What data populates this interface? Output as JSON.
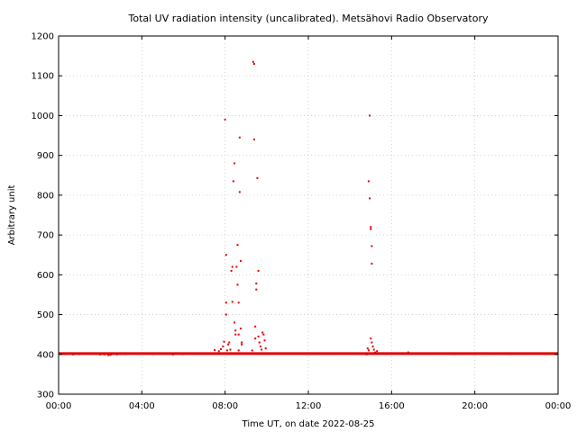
{
  "chart_data": {
    "type": "scatter",
    "title": "Total UV radiation intensity (uncalibrated). Metsähovi Radio Observatory",
    "xlabel": "Time UT, on date 2022-08-25",
    "ylabel": "Arbitrary unit",
    "xlim": [
      0,
      24
    ],
    "ylim": [
      300,
      1200
    ],
    "x_ticks": [
      0,
      4,
      8,
      12,
      16,
      20,
      24
    ],
    "x_tick_labels": [
      "00:00",
      "04:00",
      "08:00",
      "12:00",
      "16:00",
      "20:00",
      "00:00"
    ],
    "y_ticks": [
      300,
      400,
      500,
      600,
      700,
      800,
      900,
      1000,
      1100,
      1200
    ],
    "y_tick_labels": [
      "300",
      "400",
      "500",
      "600",
      "700",
      "800",
      "900",
      "1000",
      "1100",
      "1200"
    ],
    "grid": true,
    "series_color": "#e00000",
    "baseline_value": 402,
    "points": [
      [
        0.3,
        401
      ],
      [
        0.7,
        400
      ],
      [
        1.0,
        401
      ],
      [
        1.5,
        402
      ],
      [
        2.0,
        400
      ],
      [
        2.2,
        400
      ],
      [
        2.4,
        398
      ],
      [
        2.5,
        399
      ],
      [
        2.6,
        401
      ],
      [
        2.8,
        400
      ],
      [
        3.2,
        401
      ],
      [
        4.5,
        401
      ],
      [
        5.5,
        400
      ],
      [
        6.0,
        401
      ],
      [
        7.5,
        411
      ],
      [
        7.7,
        408
      ],
      [
        7.8,
        413
      ],
      [
        7.9,
        420
      ],
      [
        7.95,
        432
      ],
      [
        8.0,
        990
      ],
      [
        8.05,
        650
      ],
      [
        8.05,
        530
      ],
      [
        8.05,
        500
      ],
      [
        8.1,
        410
      ],
      [
        8.15,
        425
      ],
      [
        8.2,
        430
      ],
      [
        8.25,
        412
      ],
      [
        8.3,
        610
      ],
      [
        8.35,
        620
      ],
      [
        8.35,
        532
      ],
      [
        8.4,
        835
      ],
      [
        8.45,
        880
      ],
      [
        8.45,
        480
      ],
      [
        8.5,
        460
      ],
      [
        8.5,
        450
      ],
      [
        8.55,
        620
      ],
      [
        8.6,
        675
      ],
      [
        8.6,
        575
      ],
      [
        8.65,
        530
      ],
      [
        8.65,
        450
      ],
      [
        8.65,
        410
      ],
      [
        8.7,
        945
      ],
      [
        8.7,
        808
      ],
      [
        8.75,
        635
      ],
      [
        8.75,
        465
      ],
      [
        8.8,
        430
      ],
      [
        8.8,
        425
      ],
      [
        9.3,
        410
      ],
      [
        9.35,
        1135
      ],
      [
        9.4,
        1130
      ],
      [
        9.4,
        940
      ],
      [
        9.45,
        470
      ],
      [
        9.45,
        440
      ],
      [
        9.5,
        578
      ],
      [
        9.5,
        563
      ],
      [
        9.55,
        843
      ],
      [
        9.6,
        610
      ],
      [
        9.6,
        445
      ],
      [
        9.65,
        430
      ],
      [
        9.7,
        420
      ],
      [
        9.75,
        412
      ],
      [
        9.8,
        455
      ],
      [
        9.85,
        450
      ],
      [
        9.9,
        435
      ],
      [
        9.95,
        415
      ],
      [
        14.8,
        400
      ],
      [
        14.85,
        415
      ],
      [
        14.9,
        410
      ],
      [
        14.9,
        835
      ],
      [
        14.95,
        1000
      ],
      [
        14.95,
        792
      ],
      [
        15.0,
        720
      ],
      [
        15.0,
        715
      ],
      [
        15.05,
        672
      ],
      [
        15.05,
        628
      ],
      [
        15.0,
        440
      ],
      [
        15.05,
        430
      ],
      [
        15.1,
        420
      ],
      [
        15.15,
        412
      ],
      [
        15.2,
        405
      ],
      [
        15.3,
        408
      ],
      [
        16.8,
        405
      ],
      [
        19.0,
        401
      ],
      [
        20.3,
        403
      ],
      [
        21.7,
        401
      ],
      [
        22.5,
        402
      ]
    ]
  }
}
